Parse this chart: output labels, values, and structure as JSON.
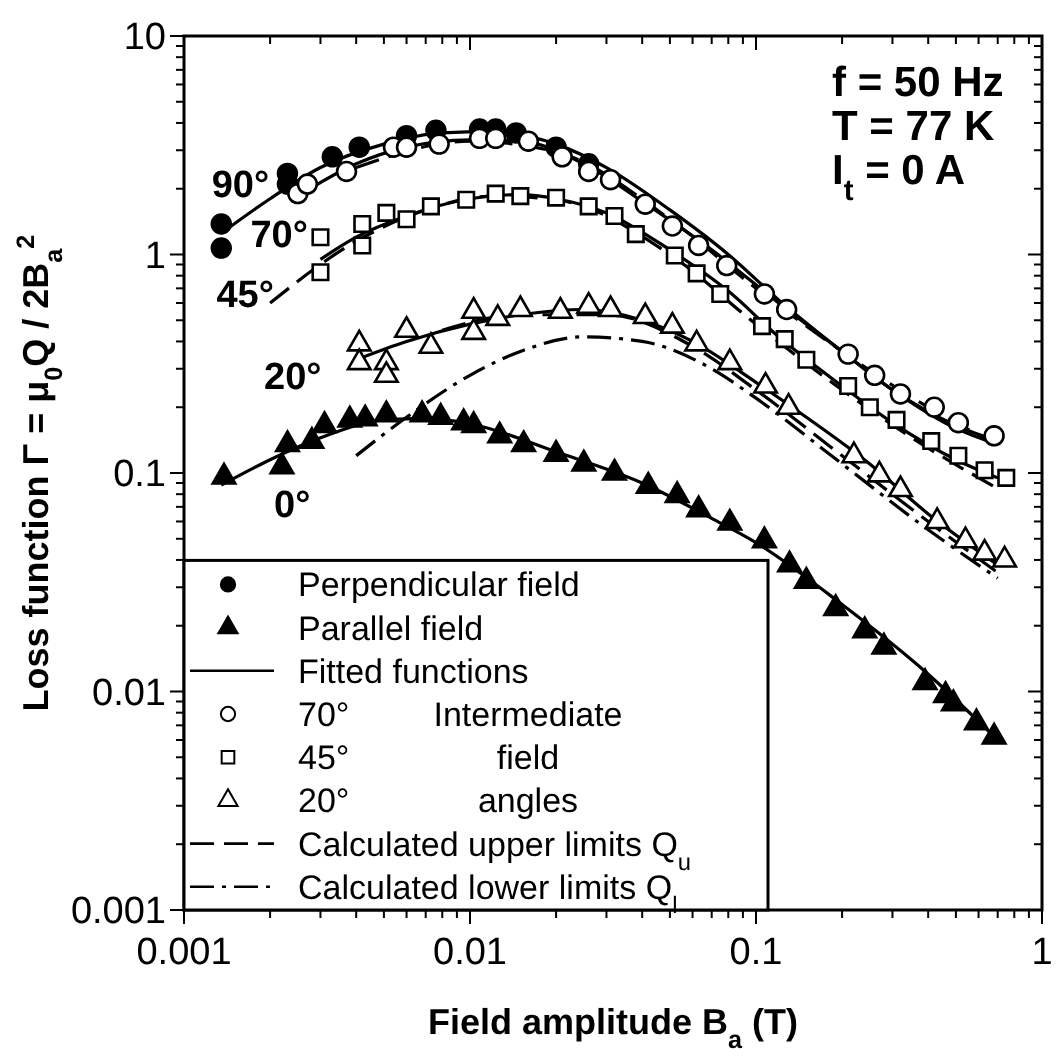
{
  "chart_data": {
    "type": "scatter",
    "xlabel": "Field amplitude B$_{a}$ (T)",
    "ylabel": "Loss function Γ = μ$_{0}$Q / 2B$_{a}$$^{2}$",
    "log": "xy",
    "xlim": [
      0.001,
      1
    ],
    "ylim": [
      0.001,
      10
    ],
    "xticks": [
      0.001,
      {
        "value": 0.002,
        "label": null
      },
      {
        "value": 0.003,
        "label": null
      },
      {
        "value": 0.004,
        "label": null
      },
      {
        "value": 0.005,
        "label": null
      },
      {
        "value": 0.006,
        "label": null
      },
      {
        "value": 0.007,
        "label": null
      },
      {
        "value": 0.008,
        "label": null
      },
      {
        "value": 0.009,
        "label": null
      },
      0.01,
      {
        "value": 0.02,
        "label": null
      },
      {
        "value": 0.03,
        "label": null
      },
      {
        "value": 0.04,
        "label": null
      },
      {
        "value": 0.05,
        "label": null
      },
      {
        "value": 0.06,
        "label": null
      },
      {
        "value": 0.07,
        "label": null
      },
      {
        "value": 0.08,
        "label": null
      },
      {
        "value": 0.09,
        "label": null
      },
      0.1,
      {
        "value": 0.2,
        "label": null
      },
      {
        "value": 0.3,
        "label": null
      },
      {
        "value": 0.4,
        "label": null
      },
      {
        "value": 0.5,
        "label": null
      },
      {
        "value": 0.6,
        "label": null
      },
      {
        "value": 0.7,
        "label": null
      },
      {
        "value": 0.8,
        "label": null
      },
      {
        "value": 0.9,
        "label": null
      },
      1
    ],
    "yticks": [
      0.001,
      {
        "value": 0.002,
        "label": null
      },
      {
        "value": 0.003,
        "label": null
      },
      {
        "value": 0.004,
        "label": null
      },
      {
        "value": 0.005,
        "label": null
      },
      {
        "value": 0.006,
        "label": null
      },
      {
        "value": 0.007,
        "label": null
      },
      {
        "value": 0.008,
        "label": null
      },
      {
        "value": 0.009,
        "label": null
      },
      0.01,
      {
        "value": 0.02,
        "label": null
      },
      {
        "value": 0.03,
        "label": null
      },
      {
        "value": 0.04,
        "label": null
      },
      {
        "value": 0.05,
        "label": null
      },
      {
        "value": 0.06,
        "label": null
      },
      {
        "value": 0.07,
        "label": null
      },
      {
        "value": 0.08,
        "label": null
      },
      {
        "value": 0.09,
        "label": null
      },
      0.1,
      {
        "value": 0.2,
        "label": null
      },
      {
        "value": 0.3,
        "label": null
      },
      {
        "value": 0.4,
        "label": null
      },
      {
        "value": 0.5,
        "label": null
      },
      {
        "value": 0.6,
        "label": null
      },
      {
        "value": 0.7,
        "label": null
      },
      {
        "value": 0.8,
        "label": null
      },
      {
        "value": 0.9,
        "label": null
      },
      1,
      {
        "value": 2,
        "label": null
      },
      {
        "value": 3,
        "label": null
      },
      {
        "value": 4,
        "label": null
      },
      {
        "value": 5,
        "label": null
      },
      {
        "value": 6,
        "label": null
      },
      {
        "value": 7,
        "label": null
      },
      {
        "value": 8,
        "label": null
      },
      {
        "value": 9,
        "label": null
      },
      10
    ],
    "grid": false,
    "legend": "bottom left",
    "series": [
      {
        "name": "Perpendicular field",
        "marker": "circle",
        "color": "#000000",
        "x": [
          0.00135,
          0.00135,
          0.0023,
          0.0023,
          0.0033,
          0.0041,
          0.006,
          0.0076,
          0.0108,
          0.0123,
          0.0145,
          0.02,
          0.026
        ],
        "values": [
          1.38,
          1.07,
          2.35,
          2.1,
          2.8,
          3.1,
          3.5,
          3.7,
          3.75,
          3.75,
          3.6,
          3.1,
          2.6
        ]
      },
      {
        "name": "Parallel field",
        "marker": "triangle",
        "color": "#000000",
        "x": [
          0.00138,
          0.0022,
          0.0023,
          0.0028,
          0.0031,
          0.0038,
          0.0043,
          0.0051,
          0.0068,
          0.0079,
          0.0095,
          0.0103,
          0.0127,
          0.0154,
          0.02,
          0.025,
          0.032,
          0.042,
          0.053,
          0.063,
          0.081,
          0.107,
          0.131,
          0.15,
          0.19,
          0.24,
          0.28,
          0.39,
          0.46,
          0.49,
          0.59,
          0.68
        ],
        "values": [
          0.096,
          0.107,
          0.135,
          0.14,
          0.165,
          0.175,
          0.177,
          0.185,
          0.185,
          0.18,
          0.17,
          0.165,
          0.148,
          0.135,
          0.122,
          0.11,
          0.1,
          0.087,
          0.079,
          0.068,
          0.059,
          0.049,
          0.038,
          0.032,
          0.024,
          0.019,
          0.016,
          0.011,
          0.0096,
          0.0088,
          0.0072,
          0.0062
        ]
      },
      {
        "name": "Fitted functions",
        "type": "line",
        "line_style": "solid",
        "color": "#000000",
        "x": [
          0.00135,
          0.002,
          0.003,
          0.005,
          0.008,
          0.012,
          0.02,
          0.03,
          0.05,
          0.08,
          0.12,
          0.2,
          0.3,
          0.5,
          0.7
        ],
        "values": [
          1.25,
          1.8,
          2.5,
          3.2,
          3.6,
          3.65,
          3.2,
          2.5,
          1.6,
          1.0,
          0.62,
          0.36,
          0.24,
          0.165,
          0.14
        ]
      },
      {
        "name": "70°",
        "marker": "circle",
        "color": "#ffffff",
        "x": [
          0.0025,
          0.0027,
          0.0037,
          0.0054,
          0.006,
          0.0078,
          0.0108,
          0.0123,
          0.016,
          0.021,
          0.026,
          0.031,
          0.041,
          0.051,
          0.063,
          0.079,
          0.107,
          0.128,
          0.21,
          0.26,
          0.32,
          0.42,
          0.51,
          0.68
        ],
        "values": [
          1.9,
          2.1,
          2.4,
          3.1,
          3.1,
          3.2,
          3.4,
          3.4,
          3.3,
          2.8,
          2.4,
          2.2,
          1.7,
          1.35,
          1.1,
          0.89,
          0.66,
          0.56,
          0.35,
          0.28,
          0.23,
          0.2,
          0.17,
          0.148
        ]
      },
      {
        "name": "45°",
        "marker": "square",
        "color": "#ffffff",
        "x": [
          0.003,
          0.003,
          0.0042,
          0.0042,
          0.0051,
          0.006,
          0.0073,
          0.0097,
          0.0123,
          0.015,
          0.02,
          0.026,
          0.032,
          0.038,
          0.052,
          0.062,
          0.075,
          0.105,
          0.126,
          0.15,
          0.21,
          0.25,
          0.31,
          0.41,
          0.51,
          0.63,
          0.75
        ],
        "values": [
          1.2,
          0.83,
          1.38,
          1.1,
          1.55,
          1.45,
          1.66,
          1.78,
          1.9,
          1.85,
          1.82,
          1.66,
          1.5,
          1.24,
          0.99,
          0.82,
          0.66,
          0.47,
          0.41,
          0.33,
          0.25,
          0.2,
          0.175,
          0.14,
          0.12,
          0.103,
          0.095
        ]
      },
      {
        "name": "20°",
        "marker": "triangle",
        "color": "#ffffff",
        "x": [
          0.0041,
          0.0041,
          0.0051,
          0.0051,
          0.006,
          0.0073,
          0.0103,
          0.0103,
          0.0125,
          0.015,
          0.0207,
          0.026,
          0.031,
          0.041,
          0.051,
          0.062,
          0.081,
          0.108,
          0.13,
          0.22,
          0.27,
          0.32,
          0.43,
          0.54,
          0.63,
          0.74
        ],
        "values": [
          0.39,
          0.32,
          0.32,
          0.28,
          0.45,
          0.38,
          0.55,
          0.44,
          0.51,
          0.56,
          0.55,
          0.58,
          0.56,
          0.52,
          0.47,
          0.39,
          0.32,
          0.25,
          0.2,
          0.12,
          0.098,
          0.084,
          0.06,
          0.049,
          0.043,
          0.04
        ]
      },
      {
        "name": "Calculated upper limits Q$_{u}$",
        "type": "line",
        "line_style": "dashed",
        "color": "#000000",
        "x": [
          0.004,
          0.01,
          0.02,
          0.05,
          0.1,
          0.2,
          0.4,
          0.7
        ],
        "values": [
          2.5,
          3.3,
          2.95,
          1.45,
          0.7,
          0.36,
          0.2,
          0.135
        ]
      },
      {
        "name": "Calculated lower limits Q$_{l}$",
        "type": "line",
        "line_style": "dashdot",
        "color": "#000000",
        "x": [
          0.004,
          0.006,
          0.01,
          0.015,
          0.025,
          0.04,
          0.07,
          0.1,
          0.2,
          0.4,
          0.7
        ],
        "values": [
          0.12,
          0.18,
          0.28,
          0.36,
          0.42,
          0.4,
          0.3,
          0.22,
          0.11,
          0.055,
          0.033
        ]
      },
      {
        "type": "line",
        "line_style": "solid",
        "color": "#000000",
        "x": [
          0.0025,
          0.004,
          0.006,
          0.01,
          0.015,
          0.025,
          0.04,
          0.07,
          0.12,
          0.2,
          0.3,
          0.5,
          0.7
        ],
        "values": [
          1.85,
          2.6,
          3.1,
          3.35,
          3.3,
          2.6,
          1.75,
          1.05,
          0.6,
          0.36,
          0.24,
          0.16,
          0.135
        ]
      },
      {
        "type": "line",
        "line_style": "solid",
        "color": "#000000",
        "x": [
          0.003,
          0.004,
          0.006,
          0.01,
          0.015,
          0.02,
          0.03,
          0.05,
          0.08,
          0.12,
          0.2,
          0.3,
          0.5,
          0.7
        ],
        "values": [
          0.95,
          1.2,
          1.5,
          1.8,
          1.88,
          1.8,
          1.55,
          1.05,
          0.68,
          0.42,
          0.25,
          0.17,
          0.115,
          0.095
        ]
      },
      {
        "type": "line",
        "line_style": "solid",
        "color": "#000000",
        "x": [
          0.004,
          0.006,
          0.01,
          0.015,
          0.025,
          0.04,
          0.06,
          0.1,
          0.15,
          0.25,
          0.4,
          0.7
        ],
        "values": [
          0.33,
          0.4,
          0.48,
          0.53,
          0.56,
          0.5,
          0.4,
          0.26,
          0.18,
          0.11,
          0.065,
          0.038
        ]
      },
      {
        "type": "line",
        "line_style": "solid",
        "color": "#000000",
        "x": [
          0.00135,
          0.002,
          0.003,
          0.005,
          0.007,
          0.01,
          0.02,
          0.04,
          0.07,
          0.1,
          0.2,
          0.4,
          0.7
        ],
        "values": [
          0.088,
          0.115,
          0.145,
          0.175,
          0.178,
          0.168,
          0.125,
          0.09,
          0.062,
          0.048,
          0.025,
          0.012,
          0.006
        ]
      },
      {
        "type": "line",
        "line_style": "dashed",
        "color": "#000000",
        "x": [
          0.002,
          0.004,
          0.007,
          0.012,
          0.02,
          0.05,
          0.1,
          0.2,
          0.4,
          0.7
        ],
        "values": [
          0.6,
          1.15,
          1.6,
          1.85,
          1.78,
          1.0,
          0.48,
          0.24,
          0.13,
          0.085
        ]
      },
      {
        "type": "line",
        "line_style": "dashed",
        "color": "#000000",
        "x": [
          0.008,
          0.015,
          0.03,
          0.06,
          0.1,
          0.2,
          0.4,
          0.7
        ],
        "values": [
          0.45,
          0.53,
          0.53,
          0.38,
          0.24,
          0.12,
          0.06,
          0.035
        ]
      }
    ],
    "annotations": [
      "f  = 50 Hz",
      "T = 77 K",
      "I$_{t}$ = 0 A",
      "Intermediate",
      "field",
      "angles",
      "20°",
      "0°",
      {
        "text": "90°",
        "x": 0.00205,
        "y": 2.1
      },
      {
        "text": "70°",
        "x": 0.0028,
        "y": 1.24
      },
      {
        "text": "45°",
        "x": 0.00213,
        "y": 0.66
      }
    ]
  }
}
